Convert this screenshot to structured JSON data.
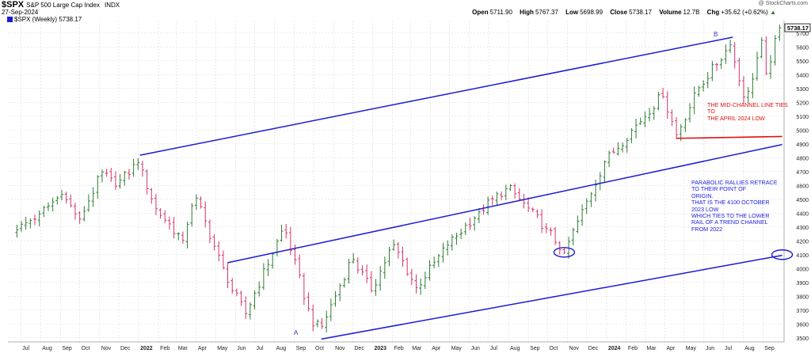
{
  "header": {
    "ticker": "$SPX",
    "name": "S&P 500 Large Cap Index",
    "exchange": "INDX",
    "date": "27-Sep-2024",
    "watermark": "@ StockCharts.com",
    "open_label": "Open",
    "open": "5711.90",
    "high_label": "High",
    "high": "5767.37",
    "low_label": "Low",
    "low": "5698.99",
    "close_label": "Close",
    "close": "5738.17",
    "volume_label": "Volume",
    "volume": "12.7B",
    "chg_label": "Chg",
    "chg": "+35.62 (+0.62%)",
    "chg_arrow": "▲"
  },
  "legend": {
    "symbol": "$SPX (Weekly)",
    "value": "5738.17"
  },
  "last_price_tag": "5738.17",
  "annotations": {
    "blue_text": [
      "PARABOLIC RALLIES RETRACE",
      "TO THEIR POINT OF",
      "ORIGIN.",
      "THAT IS THE 4100 OCTOBER",
      "2023 LOW",
      "WHICH TIES TO THE LOWER",
      "RAIL OF A TREND CHANNEL",
      "FROM 2022"
    ],
    "red_text": [
      "THE MID-CHANNEL LINE TIES TO",
      "THE APRIL 2024 LOW"
    ],
    "point_a": "A",
    "point_b": "B"
  },
  "colors": {
    "up": "#2e7d32",
    "down": "#d6336c",
    "channel": "#1a1ad6",
    "annotation_red": "#dd1111",
    "grid": "#d9d9d9",
    "pill": "#1a1ad6"
  },
  "chart_data": {
    "type": "ohlc",
    "interval": "weekly",
    "ylim": [
      3470,
      5790
    ],
    "yticks": [
      3500,
      3600,
      3700,
      3800,
      3900,
      4000,
      4100,
      4200,
      4300,
      4400,
      4500,
      4600,
      4700,
      4800,
      4900,
      5000,
      5100,
      5200,
      5300,
      5400,
      5500,
      5600,
      5700
    ],
    "xticks": [
      "Jul",
      "Aug",
      "Sep",
      "Oct",
      "Nov",
      "Dec",
      "2022",
      "Feb",
      "Mar",
      "Apr",
      "May",
      "Jun",
      "Jul",
      "Aug",
      "Sep",
      "Oct",
      "Nov",
      "Dec",
      "2023",
      "Feb",
      "Mar",
      "Apr",
      "May",
      "Jun",
      "Jul",
      "Aug",
      "Sep",
      "Oct",
      "Nov",
      "Dec",
      "2024",
      "Feb",
      "Mar",
      "Apr",
      "May",
      "Jun",
      "Jul",
      "Aug",
      "Sep"
    ],
    "grid": true,
    "anchors": [
      {
        "date": "2021-06-25",
        "close": 4280
      },
      {
        "date": "2021-07-30",
        "close": 4395
      },
      {
        "date": "2021-09-03",
        "close": 4535
      },
      {
        "date": "2021-10-01",
        "close": 4357
      },
      {
        "date": "2021-11-05",
        "close": 4697
      },
      {
        "date": "2021-11-26",
        "close": 4594
      },
      {
        "date": "2021-12-31",
        "close": 4766
      },
      {
        "date": "2022-01-28",
        "close": 4431
      },
      {
        "date": "2022-03-11",
        "close": 4204
      },
      {
        "date": "2022-03-29",
        "close": 4545
      },
      {
        "date": "2022-05-20",
        "close": 3901
      },
      {
        "date": "2022-06-17",
        "close": 3675
      },
      {
        "date": "2022-08-16",
        "close": 4305
      },
      {
        "date": "2022-09-30",
        "close": 3585
      },
      {
        "date": "2022-10-14",
        "close": 3583
      },
      {
        "date": "2022-11-30",
        "close": 4080
      },
      {
        "date": "2022-12-30",
        "close": 3840
      },
      {
        "date": "2023-02-02",
        "close": 4180
      },
      {
        "date": "2023-03-10",
        "close": 3862
      },
      {
        "date": "2023-04-28",
        "close": 4169
      },
      {
        "date": "2023-06-16",
        "close": 4409
      },
      {
        "date": "2023-07-31",
        "close": 4589
      },
      {
        "date": "2023-09-29",
        "close": 4288
      },
      {
        "date": "2023-10-27",
        "close": 4117
      },
      {
        "date": "2023-12-29",
        "close": 4770
      },
      {
        "date": "2024-03-28",
        "close": 5254
      },
      {
        "date": "2024-04-19",
        "close": 4967
      },
      {
        "date": "2024-05-24",
        "close": 5305
      },
      {
        "date": "2024-07-12",
        "close": 5615
      },
      {
        "date": "2024-08-05",
        "close": 5186
      },
      {
        "date": "2024-08-30",
        "close": 5648
      },
      {
        "date": "2024-09-06",
        "close": 5408
      },
      {
        "date": "2024-09-27",
        "close": 5738
      }
    ],
    "trendlines": [
      {
        "name": "upper",
        "from": {
          "date": "2022-01-03",
          "value": 4818
        },
        "to": {
          "date": "2024-07-16",
          "value": 5670
        }
      },
      {
        "name": "middle",
        "from": {
          "date": "2022-05-20",
          "value": 4042
        },
        "to": {
          "date": "2024-10-01",
          "value": 4895
        }
      },
      {
        "name": "lower",
        "from": {
          "date": "2022-10-13",
          "value": 3491
        },
        "to": {
          "date": "2024-10-01",
          "value": 4095
        }
      },
      {
        "name": "april-2024-low",
        "from": {
          "date": "2024-04-19",
          "value": 4940
        },
        "to": {
          "date": "2024-10-01",
          "value": 4953
        }
      }
    ],
    "markers": [
      {
        "name": "october-2023-low",
        "date": "2023-10-27",
        "value": 4117
      },
      {
        "name": "lower-rail-projection",
        "date": "2024-10-01",
        "value": 4100
      }
    ]
  }
}
